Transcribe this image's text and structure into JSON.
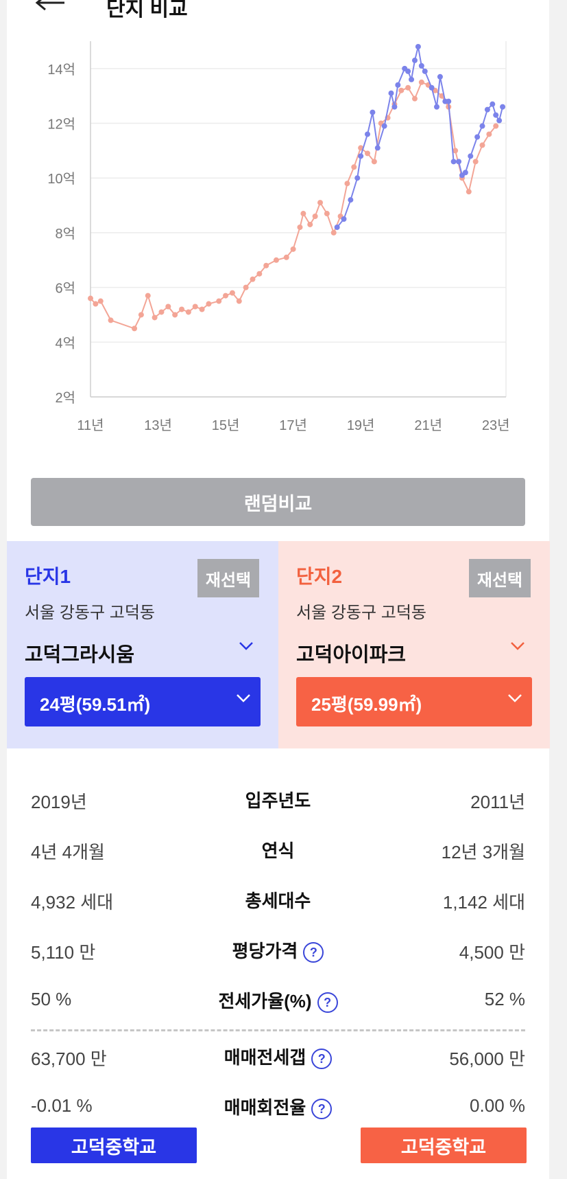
{
  "header": {
    "title": "단지 비교",
    "back_icon": "arrow-left-icon"
  },
  "chart_data": {
    "type": "line",
    "y_ticks": [
      "2억",
      "4억",
      "6억",
      "8억",
      "10억",
      "12억",
      "14억"
    ],
    "x_ticks": [
      "11년",
      "13년",
      "15년",
      "17년",
      "19년",
      "21년",
      "23년"
    ],
    "ylim": [
      2,
      15
    ],
    "xlim": [
      2011,
      2023.3
    ],
    "grid": true,
    "series": [
      {
        "color": "#7b83ea",
        "x": [
          2018.3,
          2018.5,
          2018.7,
          2018.9,
          2019.0,
          2019.2,
          2019.35,
          2019.5,
          2019.7,
          2019.9,
          2020.0,
          2020.1,
          2020.3,
          2020.4,
          2020.5,
          2020.6,
          2020.7,
          2020.8,
          2020.9,
          2021.1,
          2021.25,
          2021.35,
          2021.5,
          2021.6,
          2021.75,
          2021.9,
          2022.0,
          2022.1,
          2022.25,
          2022.45,
          2022.6,
          2022.75,
          2022.9,
          2023.0,
          2023.1,
          2023.2
        ],
        "values": [
          8.2,
          8.5,
          9.2,
          10.0,
          10.8,
          11.6,
          12.4,
          11.1,
          11.9,
          13.1,
          12.6,
          13.4,
          14.0,
          13.9,
          13.6,
          14.3,
          14.8,
          14.1,
          13.9,
          13.3,
          12.6,
          13.7,
          12.8,
          12.8,
          10.6,
          10.6,
          10.1,
          10.2,
          10.8,
          11.5,
          11.9,
          12.5,
          12.7,
          12.3,
          12.1,
          12.6
        ]
      },
      {
        "color": "#f3a596",
        "x": [
          2011.0,
          2011.15,
          2011.3,
          2011.6,
          2012.3,
          2012.5,
          2012.7,
          2012.9,
          2013.1,
          2013.3,
          2013.5,
          2013.7,
          2013.9,
          2014.1,
          2014.3,
          2014.5,
          2014.8,
          2015.0,
          2015.2,
          2015.4,
          2015.6,
          2015.8,
          2016.0,
          2016.2,
          2016.5,
          2016.8,
          2017.0,
          2017.2,
          2017.3,
          2017.5,
          2017.65,
          2017.8,
          2018.0,
          2018.2,
          2018.4,
          2018.6,
          2018.8,
          2019.0,
          2019.2,
          2019.4,
          2019.6,
          2019.8,
          2020.0,
          2020.2,
          2020.4,
          2020.6,
          2020.8,
          2021.0,
          2021.2,
          2021.4,
          2021.6,
          2021.8,
          2022.0,
          2022.2,
          2022.4,
          2022.6,
          2022.8,
          2023.0
        ],
        "values": [
          5.6,
          5.4,
          5.5,
          4.8,
          4.5,
          5.0,
          5.7,
          4.9,
          5.1,
          5.3,
          5.0,
          5.2,
          5.1,
          5.3,
          5.2,
          5.4,
          5.5,
          5.7,
          5.8,
          5.5,
          6.0,
          6.3,
          6.5,
          6.8,
          7.0,
          7.1,
          7.4,
          8.2,
          8.7,
          8.3,
          8.6,
          9.1,
          8.7,
          8.0,
          8.6,
          9.8,
          10.4,
          11.1,
          10.9,
          10.6,
          12.0,
          12.2,
          12.7,
          13.2,
          13.3,
          12.9,
          13.5,
          13.4,
          13.2,
          13.0,
          12.6,
          11.0,
          10.0,
          9.5,
          10.6,
          11.2,
          11.6,
          11.9
        ]
      }
    ]
  },
  "random_button_label": "랜덤비교",
  "complex1": {
    "title": "단지1",
    "reselect_label": "재선택",
    "region": "서울 강동구 고덕동",
    "name": "고덕그라시움",
    "size": "24평(59.51㎡)",
    "accent": "#2936e6",
    "bg": "#dfe2fc"
  },
  "complex2": {
    "title": "단지2",
    "reselect_label": "재선택",
    "region": "서울 강동구 고덕동",
    "name": "고덕아이파크",
    "size": "25평(59.99㎡)",
    "accent": "#f76245",
    "bg": "#fde3df"
  },
  "rows": [
    {
      "label": "입주년도",
      "left": "2019년",
      "right": "2011년",
      "help": false
    },
    {
      "label": "연식",
      "left": "4년 4개월",
      "right": "12년 3개월",
      "help": false
    },
    {
      "label": "총세대수",
      "left": "4,932 세대",
      "right": "1,142 세대",
      "help": false
    },
    {
      "label": "평당가격",
      "left": "5,110 만",
      "right": "4,500 만",
      "help": true
    },
    {
      "label": "전세가율(%)",
      "left": "50 %",
      "right": "52 %",
      "help": true
    },
    {
      "label": "매매전세갭",
      "left": "63,700 만",
      "right": "56,000 만",
      "help": true
    },
    {
      "label": "매매회전율",
      "left": "-0.01 %",
      "right": "0.00 %",
      "help": true
    }
  ],
  "help_icon_text": "?",
  "schools": {
    "left": "고덕중학교",
    "right": "고덕중학교"
  }
}
